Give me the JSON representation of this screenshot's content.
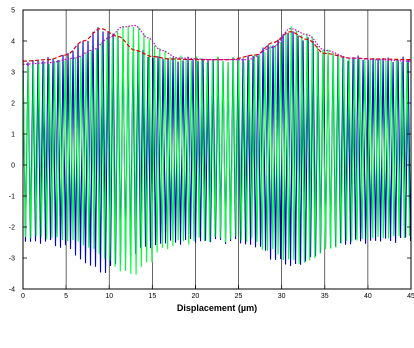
{
  "chart_data": {
    "type": "line",
    "title": "",
    "xlabel": "Displacement (µm)",
    "ylabel": "",
    "xlim": [
      0,
      45
    ],
    "ylim": [
      -4,
      5
    ],
    "x_ticks": [
      0,
      5,
      10,
      15,
      20,
      25,
      30,
      35,
      40,
      45
    ],
    "y_ticks": [
      -4,
      -3,
      -2,
      -1,
      0,
      1,
      2,
      3,
      4,
      5
    ],
    "grid": "vertical",
    "colors": {
      "signal_blue": "#0000cc",
      "signal_green": "#00ff33",
      "envelope_red": "#dd0000",
      "envelope_magenta": "#cc00cc"
    },
    "series": [
      {
        "style": "oscillating-signal",
        "color": "blue",
        "carrier_period": 0.58,
        "upper_envelope": {
          "x": [
            0,
            3,
            5,
            7,
            9,
            11,
            13,
            15,
            17,
            20,
            24,
            27,
            29,
            31,
            33,
            35,
            38,
            41,
            45
          ],
          "y": [
            3.35,
            3.4,
            3.55,
            4.0,
            4.4,
            4.15,
            3.7,
            3.5,
            3.42,
            3.4,
            3.4,
            3.55,
            3.95,
            4.3,
            4.05,
            3.6,
            3.45,
            3.42,
            3.4
          ]
        },
        "lower_envelope": {
          "x": [
            0,
            3,
            5,
            7,
            9,
            11,
            13,
            15,
            17,
            20,
            24,
            27,
            29,
            31,
            33,
            35,
            38,
            41,
            45
          ],
          "y": [
            -2.45,
            -2.5,
            -2.65,
            -3.1,
            -3.45,
            -3.2,
            -2.8,
            -2.6,
            -2.5,
            -2.45,
            -2.45,
            -2.6,
            -3.0,
            -3.25,
            -3.1,
            -2.7,
            -2.5,
            -2.45,
            -2.4
          ]
        }
      },
      {
        "style": "oscillating-signal",
        "color": "green",
        "carrier_period": 0.61,
        "upper_envelope": {
          "x": [
            0,
            3,
            6,
            8,
            10,
            11.5,
            13,
            14.5,
            16,
            18,
            22,
            26,
            29,
            31,
            33,
            35,
            38,
            41,
            45
          ],
          "y": [
            3.25,
            3.3,
            3.45,
            3.7,
            4.1,
            4.45,
            4.5,
            4.1,
            3.7,
            3.45,
            3.4,
            3.4,
            3.8,
            4.4,
            4.2,
            3.7,
            3.45,
            3.4,
            3.35
          ]
        },
        "lower_envelope": {
          "x": [
            0,
            3,
            6,
            8,
            10,
            11.5,
            13,
            14.5,
            16,
            18,
            22,
            26,
            29,
            31,
            33,
            35,
            38,
            41,
            45
          ],
          "y": [
            -2.3,
            -2.35,
            -2.45,
            -2.7,
            -3.1,
            -3.45,
            -3.5,
            -3.15,
            -2.75,
            -2.5,
            -2.4,
            -2.4,
            -2.8,
            -3.1,
            -3.15,
            -2.75,
            -2.45,
            -2.35,
            -2.3
          ]
        }
      },
      {
        "style": "dashed",
        "color": "red",
        "x": [
          0,
          3,
          5,
          7,
          9,
          11,
          13,
          15,
          17,
          20,
          24,
          27,
          29,
          31,
          33,
          35,
          38,
          41,
          45
        ],
        "y": [
          3.35,
          3.4,
          3.55,
          4.0,
          4.4,
          4.15,
          3.7,
          3.5,
          3.42,
          3.4,
          3.4,
          3.55,
          3.95,
          4.3,
          4.05,
          3.6,
          3.45,
          3.42,
          3.4
        ]
      },
      {
        "style": "dotted",
        "color": "magenta",
        "x": [
          0,
          3,
          6,
          8,
          10,
          11.5,
          13,
          14.5,
          16,
          18,
          22,
          26,
          29,
          31,
          33,
          35,
          38,
          41,
          45
        ],
        "y": [
          3.25,
          3.3,
          3.45,
          3.7,
          4.1,
          4.45,
          4.5,
          4.1,
          3.7,
          3.45,
          3.4,
          3.4,
          3.8,
          4.4,
          4.2,
          3.7,
          3.45,
          3.4,
          3.35
        ]
      }
    ]
  }
}
